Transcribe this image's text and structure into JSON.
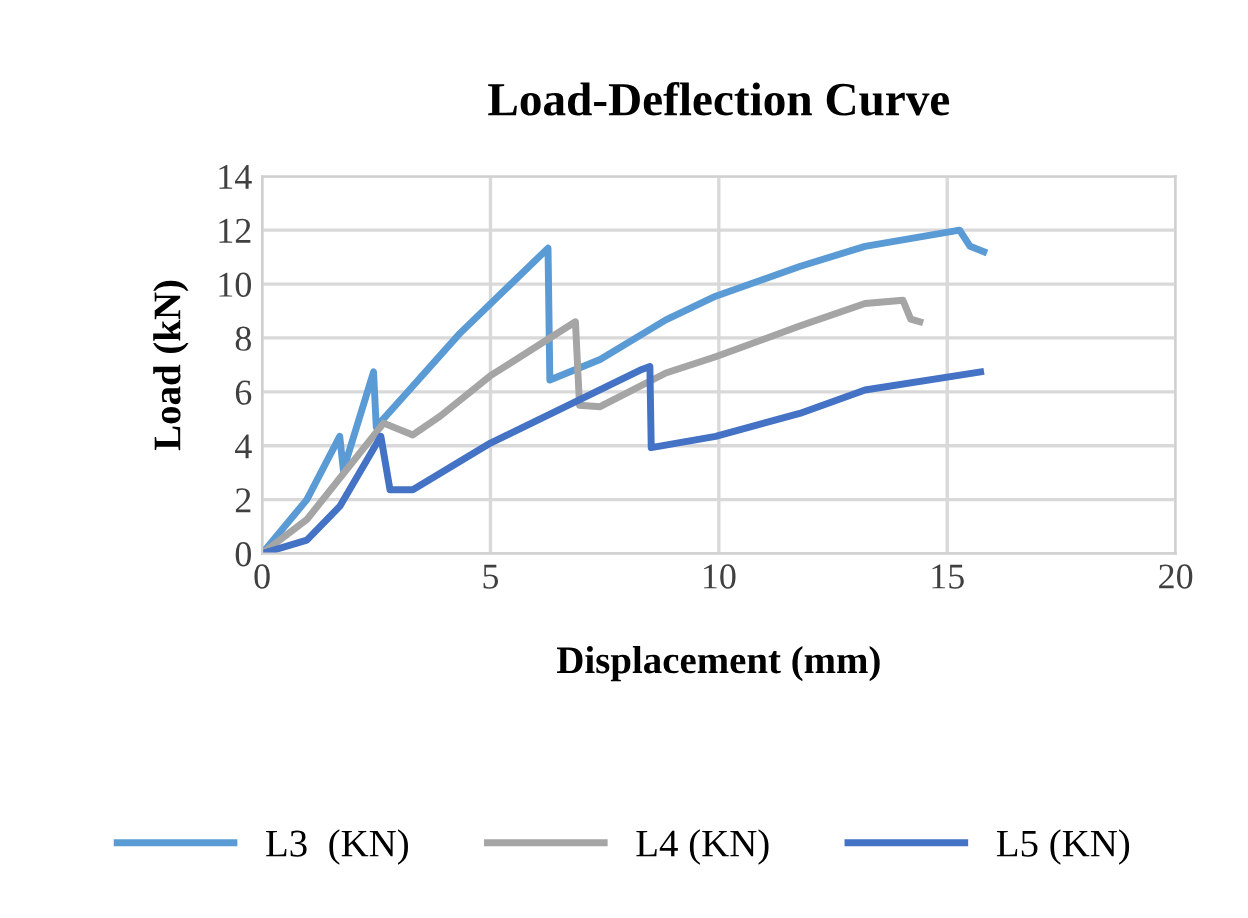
{
  "chart_data": {
    "type": "line",
    "title": "Load-Deflection Curve",
    "xlabel": "Displacement (mm)",
    "ylabel": "Load (kN)",
    "xlim": [
      0,
      20
    ],
    "xticks": [
      0,
      5,
      10,
      15,
      20
    ],
    "ylim": [
      0,
      14
    ],
    "yticks": [
      0,
      2,
      4,
      6,
      8,
      10,
      12,
      14
    ],
    "grid": true,
    "legend": "bottom",
    "marker": "none",
    "line_style": "solid",
    "series": [
      {
        "name": "L3  (KN)",
        "color": "#5b9bd5",
        "x": [
          0,
          0.98,
          1.7,
          1.78,
          2.44,
          2.5,
          3.16,
          4.33,
          6.26,
          6.3,
          7.4,
          8.84,
          9.93,
          11.77,
          13.2,
          15.27,
          15.5,
          15.8
        ],
        "values": [
          0,
          2.0,
          4.35,
          3.1,
          6.74,
          4.7,
          5.95,
          8.17,
          11.33,
          6.44,
          7.2,
          8.67,
          9.55,
          10.65,
          11.4,
          12.0,
          11.4,
          11.2
        ]
      },
      {
        "name": "L4 (KN)",
        "color": "#a5a5a5",
        "x": [
          0,
          0.98,
          2.66,
          3.3,
          3.9,
          5.0,
          6.86,
          6.95,
          7.4,
          8.84,
          9.93,
          11.77,
          13.2,
          14.03,
          14.2,
          14.4
        ],
        "values": [
          0,
          1.26,
          4.84,
          4.4,
          5.1,
          6.6,
          8.6,
          5.5,
          5.45,
          6.7,
          7.3,
          8.44,
          9.28,
          9.4,
          8.7,
          8.6
        ]
      },
      {
        "name": "L5 (KN)",
        "color": "#4472c4",
        "x": [
          0,
          0.98,
          1.7,
          2.6,
          2.8,
          3.3,
          5.0,
          8.27,
          8.49,
          8.52,
          9.93,
          11.77,
          13.2,
          15.73
        ],
        "values": [
          0,
          0.5,
          1.75,
          4.35,
          2.37,
          2.37,
          4.1,
          6.8,
          6.94,
          3.93,
          4.35,
          5.2,
          6.07,
          6.74
        ]
      }
    ]
  }
}
